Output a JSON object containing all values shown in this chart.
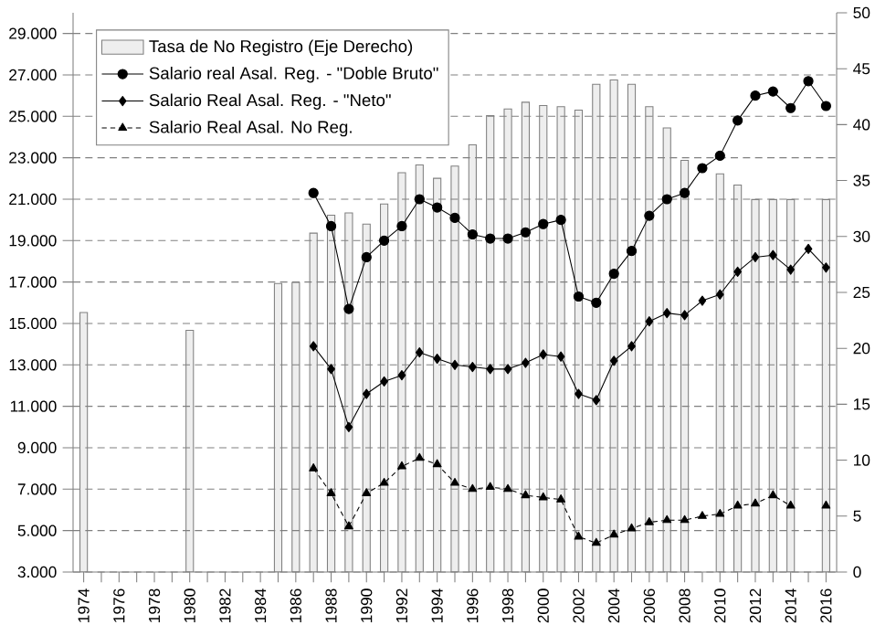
{
  "chart_data": {
    "type": "line",
    "categories": [
      "1974",
      null,
      "1976",
      null,
      "1978",
      null,
      "1980",
      null,
      "1982",
      null,
      "1984",
      null,
      "1986",
      null,
      "1988",
      null,
      "1990",
      null,
      "1992",
      null,
      "1994",
      null,
      "1996",
      null,
      "1998",
      null,
      "2000",
      null,
      "2002",
      null,
      "2004",
      null,
      "2006",
      null,
      "2008",
      null,
      "2010",
      null,
      "2012",
      null,
      "2014",
      null,
      "2016"
    ],
    "series": [
      {
        "name": "Tasa de No Registro (Eje Derecho)",
        "type": "bar",
        "axis": "y2",
        "color": "#eeeeee",
        "values": [
          23.2,
          null,
          null,
          null,
          null,
          null,
          21.6,
          null,
          null,
          null,
          null,
          25.8,
          25.9,
          30.3,
          31.9,
          32.1,
          31.1,
          32.9,
          35.7,
          36.4,
          35.2,
          36.3,
          38.2,
          40.8,
          41.4,
          42.0,
          41.7,
          41.6,
          41.3,
          43.6,
          44.0,
          43.6,
          41.6,
          39.7,
          36.8,
          null,
          35.6,
          34.6,
          33.3,
          33.3,
          33.3,
          null,
          33.3
        ]
      },
      {
        "name": "Salario real Asal. Reg. - \"Doble Bruto\"",
        "marker": "circle",
        "line_style": "solid",
        "color": "#000000",
        "values": [
          null,
          null,
          null,
          null,
          null,
          null,
          null,
          null,
          null,
          null,
          null,
          null,
          null,
          21300,
          19700,
          15700,
          18200,
          19000,
          19700,
          21000,
          20600,
          20100,
          19300,
          19100,
          19100,
          19400,
          19800,
          20000,
          16300,
          16000,
          17400,
          18500,
          20200,
          21000,
          21300,
          22500,
          23100,
          24800,
          26000,
          26200,
          25400,
          26700,
          25500
        ]
      },
      {
        "name": "Salario Real Asal. Reg. - \"Neto\"",
        "marker": "diamond",
        "line_style": "solid",
        "color": "#000000",
        "values": [
          null,
          null,
          null,
          null,
          null,
          null,
          null,
          null,
          null,
          null,
          null,
          null,
          null,
          13900,
          12800,
          10000,
          11600,
          12200,
          12500,
          13600,
          13300,
          13000,
          12900,
          12800,
          12800,
          13100,
          13500,
          13400,
          11600,
          11300,
          13200,
          13900,
          15100,
          15500,
          15400,
          16100,
          16400,
          17500,
          18200,
          18300,
          17600,
          18600,
          17700
        ]
      },
      {
        "name": "Salario Real Asal. No Reg.",
        "marker": "triangle",
        "line_style": "dashed",
        "color": "#000000",
        "values": [
          null,
          null,
          null,
          null,
          null,
          null,
          null,
          null,
          null,
          null,
          null,
          null,
          null,
          8000,
          6800,
          5200,
          6800,
          7300,
          8100,
          8500,
          8200,
          7300,
          7000,
          7100,
          7000,
          6700,
          6600,
          6500,
          4700,
          4400,
          4800,
          5100,
          5400,
          5500,
          5500,
          5700,
          5800,
          6200,
          6300,
          6700,
          6200,
          null,
          6200
        ]
      }
    ],
    "ylim": [
      3000,
      30000
    ],
    "yticks": [
      {
        "value": 3000,
        "label": "3.000"
      },
      {
        "value": 5000,
        "label": "5.000"
      },
      {
        "value": 7000,
        "label": "7.000"
      },
      {
        "value": 9000,
        "label": "9.000"
      },
      {
        "value": 11000,
        "label": "11.000"
      },
      {
        "value": 13000,
        "label": "13.000"
      },
      {
        "value": 15000,
        "label": "15.000"
      },
      {
        "value": 17000,
        "label": "17.000"
      },
      {
        "value": 19000,
        "label": "19.000"
      },
      {
        "value": 21000,
        "label": "21.000"
      },
      {
        "value": 23000,
        "label": "23.000"
      },
      {
        "value": 25000,
        "label": "25.000"
      },
      {
        "value": 27000,
        "label": "27.000"
      },
      {
        "value": 29000,
        "label": "29.000"
      }
    ],
    "y2lim": [
      0,
      50
    ],
    "y2ticks": [
      0,
      5,
      10,
      15,
      20,
      25,
      30,
      35,
      40,
      45,
      50
    ],
    "grid": "y",
    "legend": "top left"
  }
}
